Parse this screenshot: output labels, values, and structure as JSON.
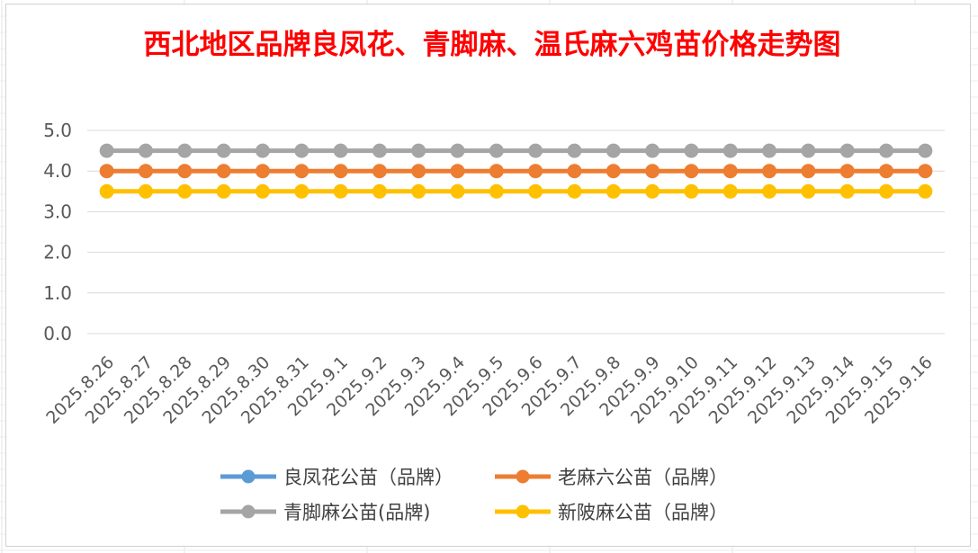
{
  "chart_data": {
    "type": "line",
    "title": "西北地区品牌良凤花、青脚麻、温氏麻六鸡苗价格走势图",
    "xlabel": "",
    "ylabel": "",
    "ylim": [
      0,
      5
    ],
    "yticks": [
      "0.0",
      "1.0",
      "2.0",
      "3.0",
      "4.0",
      "5.0"
    ],
    "grid": true,
    "legend_position": "bottom",
    "categories": [
      "2025.8.26",
      "2025.8.27",
      "2025.8.28",
      "2025.8.29",
      "2025.8.30",
      "2025.8.31",
      "2025.9.1",
      "2025.9.2",
      "2025.9.3",
      "2025.9.4",
      "2025.9.5",
      "2025.9.6",
      "2025.9.7",
      "2025.9.8",
      "2025.9.9",
      "2025.9.10",
      "2025.9.11",
      "2025.9.12",
      "2025.9.13",
      "2025.9.14",
      "2025.9.15",
      "2025.9.16"
    ],
    "series": [
      {
        "name": "良凤花公苗（品牌）",
        "color": "#5b9bd5",
        "values": [
          null,
          null,
          null,
          null,
          null,
          null,
          null,
          null,
          null,
          null,
          null,
          null,
          null,
          null,
          null,
          null,
          null,
          null,
          null,
          null,
          null,
          null
        ]
      },
      {
        "name": "老麻六公苗（品牌）",
        "color": "#ed7d31",
        "values": [
          4.0,
          4.0,
          4.0,
          4.0,
          4.0,
          4.0,
          4.0,
          4.0,
          4.0,
          4.0,
          4.0,
          4.0,
          4.0,
          4.0,
          4.0,
          4.0,
          4.0,
          4.0,
          4.0,
          4.0,
          4.0,
          4.0
        ]
      },
      {
        "name": "青脚麻公苗(品牌)",
        "color": "#a5a5a5",
        "values": [
          4.5,
          4.5,
          4.5,
          4.5,
          4.5,
          4.5,
          4.5,
          4.5,
          4.5,
          4.5,
          4.5,
          4.5,
          4.5,
          4.5,
          4.5,
          4.5,
          4.5,
          4.5,
          4.5,
          4.5,
          4.5,
          4.5
        ]
      },
      {
        "name": "新陂麻公苗（品牌）",
        "color": "#ffc000",
        "values": [
          3.5,
          3.5,
          3.5,
          3.5,
          3.5,
          3.5,
          3.5,
          3.5,
          3.5,
          3.5,
          3.5,
          3.5,
          3.5,
          3.5,
          3.5,
          3.5,
          3.5,
          3.5,
          3.5,
          3.5,
          3.5,
          3.5
        ]
      }
    ]
  }
}
